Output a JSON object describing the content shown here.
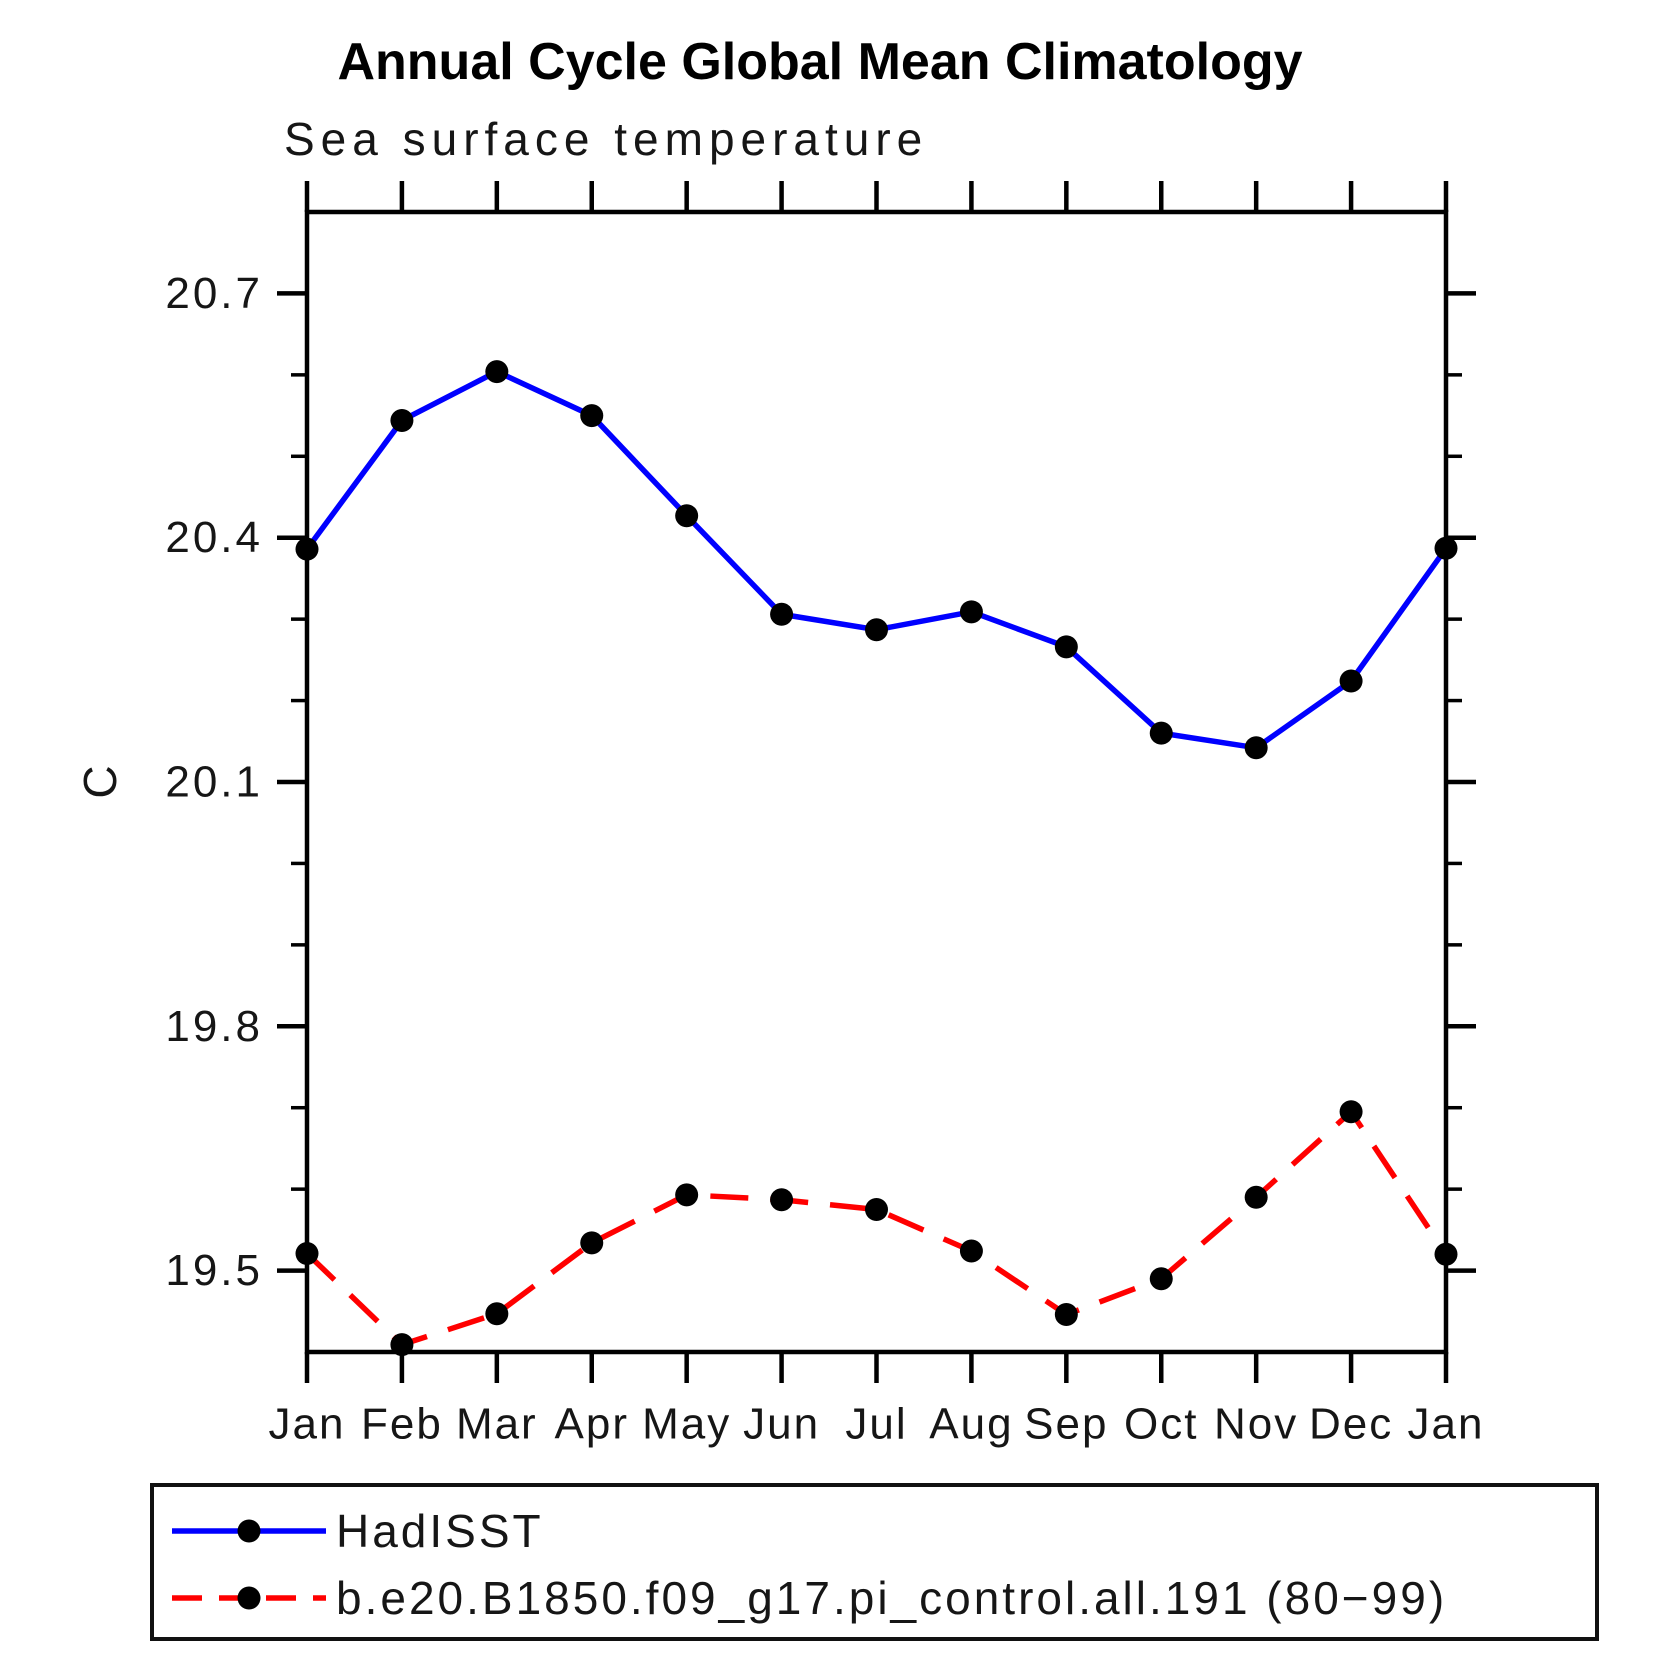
{
  "title": "Annual Cycle Global Mean Climatology",
  "subtitle": "Sea surface temperature",
  "y_axis": {
    "label": "C",
    "major_tick_labels": [
      "20.7",
      "20.4",
      "20.1",
      "19.8",
      "19.5"
    ],
    "major_tick_values": [
      20.7,
      20.4,
      20.1,
      19.8,
      19.5
    ],
    "minor_tick_values": [
      19.6,
      19.7,
      19.9,
      20.0,
      20.2,
      20.3,
      20.5,
      20.6
    ],
    "min": 19.4,
    "max": 20.8
  },
  "x_axis": {
    "tick_labels": [
      "Jan",
      "Feb",
      "Mar",
      "Apr",
      "May",
      "Jun",
      "Jul",
      "Aug",
      "Sep",
      "Oct",
      "Nov",
      "Dec",
      "Jan"
    ]
  },
  "chart_data": {
    "type": "line",
    "categories": [
      "Jan",
      "Feb",
      "Mar",
      "Apr",
      "May",
      "Jun",
      "Jul",
      "Aug",
      "Sep",
      "Oct",
      "Nov",
      "Dec",
      "Jan"
    ],
    "title": "Annual Cycle Global Mean Climatology",
    "subtitle": "Sea surface temperature",
    "ylabel": "C",
    "ylim": [
      19.4,
      20.8
    ],
    "y_major_step": 0.3,
    "y_minor_step": 0.1,
    "grid": false,
    "legend_position": "bottom",
    "series": [
      {
        "name": "HadISST",
        "color": "#0000ff",
        "line_style": "solid",
        "marker": "filled-circle",
        "marker_color": "#000000",
        "values": [
          20.386,
          20.544,
          20.604,
          20.55,
          20.427,
          20.306,
          20.287,
          20.309,
          20.266,
          20.16,
          20.142,
          20.224,
          20.387
        ]
      },
      {
        "name": "b.e20.B1850.f09_g17.pi_control.all.191 (80−99)",
        "color": "#ff0000",
        "line_style": "dashed",
        "marker": "filled-circle",
        "marker_color": "#000000",
        "values": [
          19.521,
          19.409,
          19.447,
          19.534,
          19.593,
          19.587,
          19.575,
          19.524,
          19.446,
          19.49,
          19.59,
          19.695,
          19.52
        ]
      }
    ]
  },
  "legend": {
    "entries": [
      {
        "label": "HadISST"
      },
      {
        "label": "b.e20.B1850.f09_g17.pi_control.all.191 (80−99)"
      }
    ]
  },
  "colors": {
    "hadisst_line": "#0000ff",
    "model_line": "#ff0000",
    "marker": "#000000",
    "axis": "#000000",
    "text": "#161616"
  }
}
